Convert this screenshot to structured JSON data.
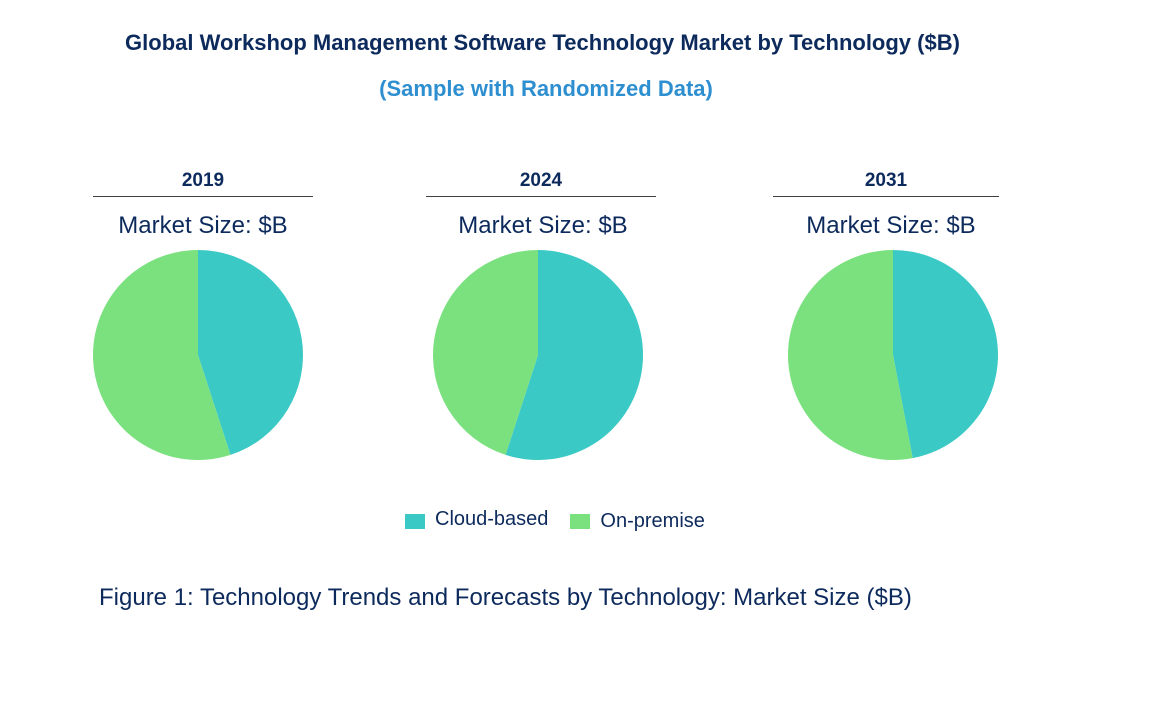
{
  "chart_data": {
    "type": "pie",
    "title": "Global Workshop Management Software Technology Market by Technology ($B)",
    "subtitle": "(Sample with Randomized Data)",
    "categories": [
      "Cloud-based",
      "On-premise"
    ],
    "colors": {
      "Cloud-based": "#3ac9c5",
      "On-premise": "#7be17f"
    },
    "legend_position": "bottom",
    "pies": [
      {
        "year": "2019",
        "label": "Market Size: $B",
        "values": [
          45,
          55
        ]
      },
      {
        "year": "2024",
        "label": "Market Size: $B",
        "values": [
          55,
          45
        ]
      },
      {
        "year": "2031",
        "label": "Market Size: $B",
        "values": [
          47,
          53
        ]
      }
    ],
    "caption": "Figure 1: Technology Trends and Forecasts by Technology: Market Size ($B)"
  }
}
